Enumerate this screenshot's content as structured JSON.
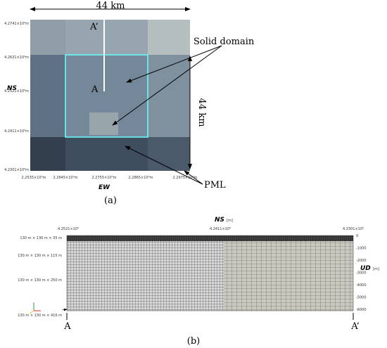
{
  "panel_a": {
    "width_label": "44 km",
    "height_label": "44 km",
    "point_top": "A’",
    "point_bottom": "A",
    "solid_label": "Solid domain",
    "pml_label": "PML",
    "y_axis": "NS",
    "x_axis": "EW",
    "y_ticks": [
      "4.2741×10⁶m",
      "4.2631×10⁶m",
      "4.2521×10⁶m",
      "4.2411×10⁶m",
      "4.2301×10⁶m"
    ],
    "x_ticks": [
      "2.2535×10⁶m",
      "2.2645×10⁶m",
      "2.2755×10⁶m",
      "2.2865×10⁶m",
      "2.2975×10⁶m"
    ],
    "caption": "(a)"
  },
  "panel_b": {
    "top_axis": "NS",
    "top_unit": "[m]",
    "top_ticks": [
      "4.2521×10⁶",
      "4.2411×10⁶",
      "4.2301×10⁶"
    ],
    "right_axis": "UD",
    "right_unit": "[m]",
    "right_ticks": [
      "0",
      "-1000",
      "-2000",
      "-3000",
      "-4000",
      "-5000",
      "-6000"
    ],
    "layers": [
      "130 m × 130 m × 35 m",
      "130 m × 130 m × 115 m",
      "130 m × 130 m × 250 m",
      "130 m × 130 m × 416 m"
    ],
    "start": "A",
    "end": "A’",
    "caption": "(b)"
  }
}
